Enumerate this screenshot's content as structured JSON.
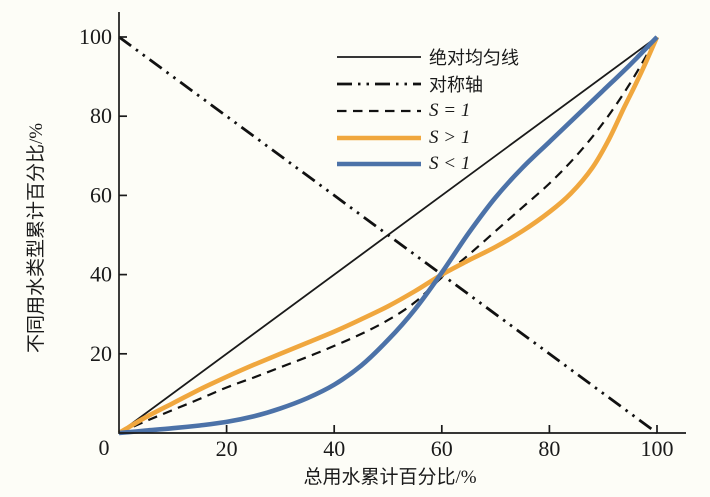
{
  "chart_data": {
    "type": "line",
    "title": "",
    "xlabel": "总用水累计百分比/%",
    "ylabel": "不同用水类型累计百分比/%",
    "xlim": [
      0,
      100
    ],
    "ylim": [
      0,
      100
    ],
    "x_ticks": [
      0,
      20,
      40,
      60,
      80,
      100
    ],
    "y_ticks": [
      0,
      20,
      40,
      60,
      80,
      100
    ],
    "origin_label": "0",
    "grid": false,
    "legend_position": "upper-center",
    "axis_color": "#1a1a1a",
    "series": [
      {
        "name": "绝对均匀线",
        "kind": "straight",
        "color": "#1a1a1a",
        "width": 1.8,
        "dash": "",
        "points": [
          [
            0,
            0
          ],
          [
            100,
            100
          ]
        ]
      },
      {
        "name": "对称轴",
        "kind": "straight",
        "color": "#111111",
        "width": 2.8,
        "dash": "15 6 2.5 6 2.5 6",
        "points": [
          [
            0,
            100
          ],
          [
            100,
            0
          ]
        ]
      },
      {
        "name": "S = 1",
        "kind": "curve",
        "color": "#111111",
        "width": 2.2,
        "dash": "9.5 6.5",
        "points": [
          [
            0,
            0
          ],
          [
            5,
            3
          ],
          [
            10,
            5.8
          ],
          [
            15,
            8.6
          ],
          [
            20,
            11.5
          ],
          [
            25,
            14
          ],
          [
            30,
            16.6
          ],
          [
            35,
            19.2
          ],
          [
            40,
            22
          ],
          [
            45,
            25
          ],
          [
            50,
            28.5
          ],
          [
            55,
            33
          ],
          [
            60,
            39.3
          ],
          [
            65,
            45
          ],
          [
            70,
            51
          ],
          [
            75,
            57
          ],
          [
            80,
            63
          ],
          [
            85,
            70
          ],
          [
            90,
            78.3
          ],
          [
            95,
            88.3
          ],
          [
            100,
            100
          ]
        ]
      },
      {
        "name": "S > 1",
        "kind": "curve",
        "color": "#F0A73E",
        "width": 4.6,
        "dash": "",
        "points": [
          [
            0,
            0
          ],
          [
            5,
            4
          ],
          [
            10,
            7.5
          ],
          [
            15,
            11
          ],
          [
            20,
            14.2
          ],
          [
            25,
            17.2
          ],
          [
            30,
            20
          ],
          [
            35,
            22.8
          ],
          [
            40,
            25.6
          ],
          [
            45,
            28.7
          ],
          [
            50,
            32
          ],
          [
            55,
            35.8
          ],
          [
            60,
            40
          ],
          [
            65,
            43.6
          ],
          [
            70,
            47
          ],
          [
            75,
            51
          ],
          [
            80,
            55.8
          ],
          [
            84,
            60.5
          ],
          [
            88,
            67
          ],
          [
            91,
            74
          ],
          [
            94,
            82.5
          ],
          [
            96,
            88
          ],
          [
            98,
            93.8
          ],
          [
            100,
            100
          ]
        ]
      },
      {
        "name": "S < 1",
        "kind": "curve",
        "color": "#4C72A8",
        "width": 4.6,
        "dash": "",
        "points": [
          [
            0,
            0
          ],
          [
            5,
            0.6
          ],
          [
            10,
            1.2
          ],
          [
            15,
            1.9
          ],
          [
            20,
            2.8
          ],
          [
            25,
            4.2
          ],
          [
            30,
            6.2
          ],
          [
            35,
            8.8
          ],
          [
            40,
            12.2
          ],
          [
            45,
            17
          ],
          [
            50,
            23.5
          ],
          [
            55,
            31.2
          ],
          [
            60,
            40.5
          ],
          [
            65,
            50.5
          ],
          [
            70,
            59.5
          ],
          [
            75,
            67
          ],
          [
            80,
            73.5
          ],
          [
            85,
            80
          ],
          [
            90,
            86.5
          ],
          [
            95,
            93
          ],
          [
            100,
            100
          ]
        ]
      }
    ]
  }
}
